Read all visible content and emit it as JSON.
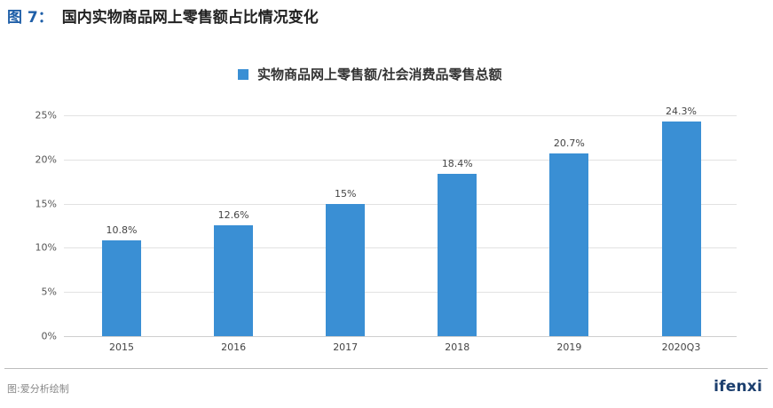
{
  "header": {
    "figure_label": "图 7：",
    "title": "国内实物商品网上零售额占比情况变化"
  },
  "legend": {
    "label": "实物商品网上零售额/社会消费品零售总额",
    "color": "#3a8fd4"
  },
  "footer": {
    "source": "图:爱分析绘制",
    "logo": "ifenxi"
  },
  "chart_data": {
    "type": "bar",
    "title": "国内实物商品网上零售额占比情况变化",
    "categories": [
      "2015",
      "2016",
      "2017",
      "2018",
      "2019",
      "2020Q3"
    ],
    "series": [
      {
        "name": "实物商品网上零售额/社会消费品零售总额",
        "values": [
          10.8,
          12.6,
          15,
          18.4,
          20.7,
          24.3
        ],
        "labels": [
          "10.8%",
          "12.6%",
          "15%",
          "18.4%",
          "20.7%",
          "24.3%"
        ],
        "color": "#3a8fd4"
      }
    ],
    "xlabel": "",
    "ylabel": "",
    "ylim": [
      0,
      25
    ],
    "yticks": [
      "0%",
      "5%",
      "10%",
      "15%",
      "20%",
      "25%"
    ],
    "grid": true,
    "legend_position": "top"
  }
}
